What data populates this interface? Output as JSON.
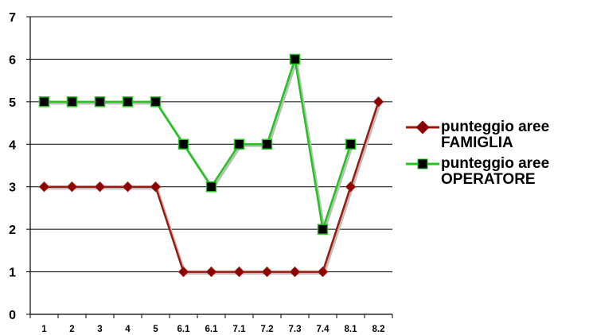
{
  "chart_data": {
    "type": "line",
    "categories": [
      "1",
      "2",
      "3",
      "4",
      "5",
      "6.1",
      "6.1",
      "7.1",
      "7.2",
      "7.3",
      "7.4",
      "8.1",
      "8.2"
    ],
    "ylim": [
      0,
      7
    ],
    "yticks": [
      "0",
      "1",
      "2",
      "3",
      "4",
      "5",
      "6",
      "7"
    ],
    "grid": true,
    "legend_position": "right",
    "series": [
      {
        "name": "punteggio aree FAMIGLIA",
        "values": [
          3,
          3,
          3,
          3,
          3,
          1,
          1,
          1,
          1,
          1,
          1,
          3,
          5
        ],
        "color": "#9b1a0c",
        "marker": "diamond"
      },
      {
        "name": "punteggio aree OPERATORE",
        "values": [
          5,
          5,
          5,
          5,
          5,
          4,
          3,
          4,
          4,
          6,
          2,
          4,
          null
        ],
        "color": "#22c41e",
        "marker": "square"
      }
    ]
  }
}
